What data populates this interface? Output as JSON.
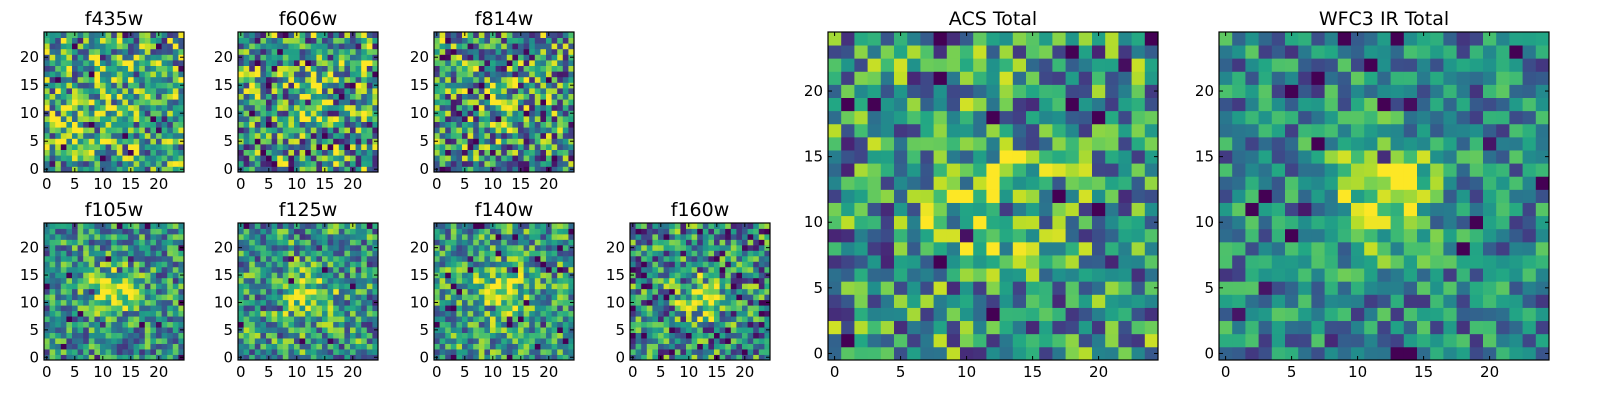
{
  "chart_data": {
    "type": "heatmap",
    "colormap": "viridis",
    "grid": false,
    "panels": [
      {
        "id": "f435w",
        "title": "f435w",
        "xticks": [
          0,
          5,
          10,
          15,
          20
        ],
        "yticks": [
          0,
          5,
          10,
          15,
          20
        ],
        "xlim": [
          0,
          25
        ],
        "ylim": [
          0,
          25
        ],
        "seed": 11,
        "blob": {
          "cx": 11,
          "cy": 11,
          "strength": 0.05
        },
        "noise": 0.45,
        "base": 0.6
      },
      {
        "id": "f606w",
        "title": "f606w",
        "xticks": [
          0,
          5,
          10,
          15,
          20
        ],
        "yticks": [
          0,
          5,
          10,
          15,
          20
        ],
        "xlim": [
          0,
          25
        ],
        "ylim": [
          0,
          25
        ],
        "seed": 23,
        "blob": {
          "cx": 11,
          "cy": 12,
          "strength": 0.15
        },
        "noise": 0.5,
        "base": 0.55
      },
      {
        "id": "f814w",
        "title": "f814w",
        "xticks": [
          0,
          5,
          10,
          15,
          20
        ],
        "yticks": [
          0,
          5,
          10,
          15,
          20
        ],
        "xlim": [
          0,
          25
        ],
        "ylim": [
          0,
          25
        ],
        "seed": 37,
        "blob": {
          "cx": 11,
          "cy": 12,
          "strength": 0.3
        },
        "noise": 0.5,
        "base": 0.5
      },
      {
        "id": "f105w",
        "title": "f105w",
        "xticks": [
          0,
          5,
          10,
          15,
          20
        ],
        "yticks": [
          0,
          5,
          10,
          15,
          20
        ],
        "xlim": [
          0,
          25
        ],
        "ylim": [
          0,
          25
        ],
        "seed": 41,
        "blob": {
          "cx": 12,
          "cy": 12,
          "strength": 0.45
        },
        "noise": 0.35,
        "base": 0.5
      },
      {
        "id": "f125w",
        "title": "f125w",
        "xticks": [
          0,
          5,
          10,
          15,
          20
        ],
        "yticks": [
          0,
          5,
          10,
          15,
          20
        ],
        "xlim": [
          0,
          25
        ],
        "ylim": [
          0,
          25
        ],
        "seed": 53,
        "blob": {
          "cx": 12,
          "cy": 11,
          "strength": 0.4
        },
        "noise": 0.38,
        "base": 0.52
      },
      {
        "id": "f140w",
        "title": "f140w",
        "xticks": [
          0,
          5,
          10,
          15,
          20
        ],
        "yticks": [
          0,
          5,
          10,
          15,
          20
        ],
        "xlim": [
          0,
          25
        ],
        "ylim": [
          0,
          25
        ],
        "seed": 67,
        "blob": {
          "cx": 11,
          "cy": 12,
          "strength": 0.45
        },
        "noise": 0.35,
        "base": 0.55
      },
      {
        "id": "f160w",
        "title": "f160w",
        "xticks": [
          0,
          5,
          10,
          15,
          20
        ],
        "yticks": [
          0,
          5,
          10,
          15,
          20
        ],
        "xlim": [
          0,
          25
        ],
        "ylim": [
          0,
          25
        ],
        "seed": 71,
        "blob": {
          "cx": 12,
          "cy": 11,
          "strength": 0.35
        },
        "noise": 0.45,
        "base": 0.45
      },
      {
        "id": "acs-total",
        "title": "ACS Total",
        "xticks": [
          0,
          5,
          10,
          15,
          20
        ],
        "yticks": [
          0,
          5,
          10,
          15,
          20
        ],
        "xlim": [
          0,
          25
        ],
        "ylim": [
          0,
          25
        ],
        "seed": 89,
        "blob": {
          "cx": 12,
          "cy": 12,
          "strength": 0.3
        },
        "noise": 0.42,
        "base": 0.52
      },
      {
        "id": "wfc3-ir-total",
        "title": "WFC3 IR Total",
        "xticks": [
          0,
          5,
          10,
          15,
          20
        ],
        "yticks": [
          0,
          5,
          10,
          15,
          20
        ],
        "xlim": [
          0,
          25
        ],
        "ylim": [
          0,
          25
        ],
        "seed": 97,
        "blob": {
          "cx": 12,
          "cy": 12,
          "strength": 0.5
        },
        "noise": 0.3,
        "base": 0.45
      }
    ]
  }
}
